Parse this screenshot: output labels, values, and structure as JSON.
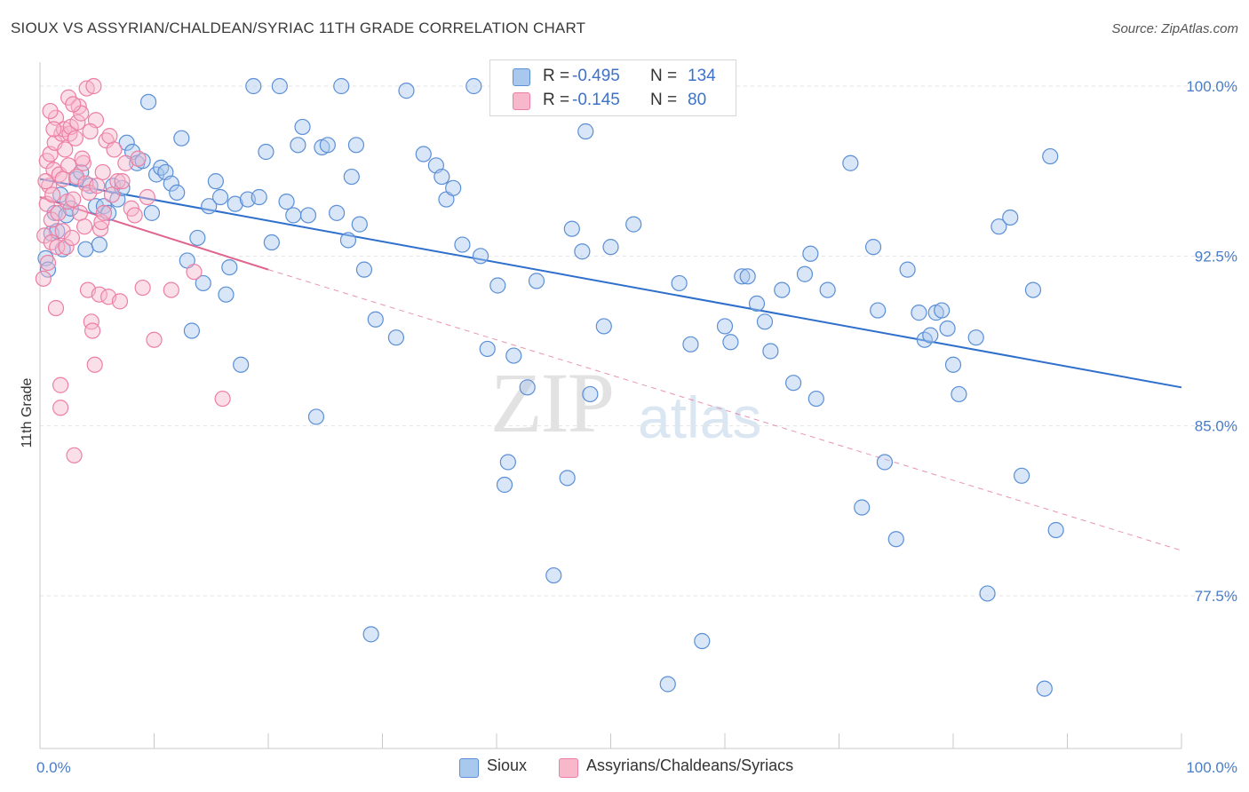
{
  "title": "SIOUX VS ASSYRIAN/CHALDEAN/SYRIAC 11TH GRADE CORRELATION CHART",
  "source": "Source: ZipAtlas.com",
  "watermark": {
    "zip": "ZIP",
    "atlas": "atlas"
  },
  "legend": {
    "rows": [
      {
        "r_label": "R =",
        "r_value": "-0.495",
        "n_label": "N =",
        "n_value": "134",
        "color": "#a9c8ee"
      },
      {
        "r_label": "R =",
        "r_value": "-0.145",
        "n_label": "N =",
        "n_value": "80",
        "color": "#f7b8cb"
      }
    ]
  },
  "bottom_legend": [
    {
      "label": "Sioux",
      "color": "#a9c8ee"
    },
    {
      "label": "Assyrians/Chaldeans/Syriacs",
      "color": "#f7b8cb"
    }
  ],
  "chart_data": {
    "type": "scatter",
    "title": "SIOUX VS ASSYRIAN/CHALDEAN/SYRIAC 11TH GRADE CORRELATION CHART",
    "xlabel": "",
    "ylabel": "11th Grade",
    "xlim": [
      0,
      100
    ],
    "ylim": [
      70,
      100.5
    ],
    "y_ticks": [
      {
        "value": 100.0,
        "label": "100.0%"
      },
      {
        "value": 92.5,
        "label": "92.5%"
      },
      {
        "value": 85.0,
        "label": "85.0%"
      },
      {
        "value": 77.5,
        "label": "77.5%"
      }
    ],
    "x_ticks": [
      {
        "value": 0,
        "label": "0.0%"
      },
      {
        "value": 100,
        "label": "100.0%"
      }
    ],
    "grid": true,
    "series": [
      {
        "name": "Sioux",
        "color": "#5b8fd6",
        "fill": "#a9c8ee",
        "trend": {
          "x": [
            0,
            100
          ],
          "y": [
            95.9,
            86.7
          ],
          "style": "solid",
          "color": "#2f6fcc"
        },
        "points": [
          [
            0.5,
            92.4
          ],
          [
            0.7,
            91.9
          ],
          [
            1.0,
            93.5
          ],
          [
            1.3,
            94.4
          ],
          [
            1.5,
            93.6
          ],
          [
            1.8,
            95.2
          ],
          [
            2.0,
            92.8
          ],
          [
            2.3,
            94.3
          ],
          [
            2.7,
            94.6
          ],
          [
            3.2,
            95.9
          ],
          [
            3.6,
            96.2
          ],
          [
            4.0,
            92.8
          ],
          [
            4.4,
            95.6
          ],
          [
            4.9,
            94.7
          ],
          [
            5.2,
            93.0
          ],
          [
            5.6,
            94.7
          ],
          [
            6.0,
            94.4
          ],
          [
            6.4,
            95.6
          ],
          [
            6.8,
            95.0
          ],
          [
            7.2,
            95.5
          ],
          [
            7.6,
            97.5
          ],
          [
            8.1,
            97.1
          ],
          [
            8.5,
            96.6
          ],
          [
            9.0,
            96.7
          ],
          [
            9.5,
            99.3
          ],
          [
            9.8,
            94.4
          ],
          [
            10.2,
            96.1
          ],
          [
            10.6,
            96.4
          ],
          [
            11.0,
            96.2
          ],
          [
            11.5,
            95.7
          ],
          [
            12.0,
            95.3
          ],
          [
            12.4,
            97.7
          ],
          [
            12.9,
            92.3
          ],
          [
            13.3,
            89.2
          ],
          [
            13.8,
            93.3
          ],
          [
            14.3,
            91.3
          ],
          [
            14.8,
            94.7
          ],
          [
            15.4,
            95.8
          ],
          [
            15.8,
            95.1
          ],
          [
            16.3,
            90.8
          ],
          [
            16.6,
            92.0
          ],
          [
            17.1,
            94.8
          ],
          [
            17.6,
            87.7
          ],
          [
            18.2,
            95.0
          ],
          [
            18.7,
            100.0
          ],
          [
            19.2,
            95.1
          ],
          [
            19.8,
            97.1
          ],
          [
            20.3,
            93.1
          ],
          [
            21.0,
            100.0
          ],
          [
            21.6,
            94.9
          ],
          [
            22.2,
            94.3
          ],
          [
            22.6,
            97.4
          ],
          [
            23.0,
            98.2
          ],
          [
            23.5,
            94.3
          ],
          [
            24.2,
            85.4
          ],
          [
            24.7,
            97.3
          ],
          [
            25.2,
            97.4
          ],
          [
            26.0,
            94.4
          ],
          [
            26.4,
            100.0
          ],
          [
            27.0,
            93.2
          ],
          [
            27.3,
            96.0
          ],
          [
            27.7,
            97.4
          ],
          [
            28.0,
            93.9
          ],
          [
            28.4,
            91.9
          ],
          [
            29.0,
            75.8
          ],
          [
            29.4,
            89.7
          ],
          [
            31.2,
            88.9
          ],
          [
            32.1,
            99.8
          ],
          [
            33.6,
            97.0
          ],
          [
            34.7,
            96.5
          ],
          [
            35.2,
            96.0
          ],
          [
            35.6,
            95.0
          ],
          [
            36.2,
            95.5
          ],
          [
            37.0,
            93.0
          ],
          [
            38.0,
            100.0
          ],
          [
            38.6,
            92.5
          ],
          [
            39.2,
            88.4
          ],
          [
            40.1,
            91.2
          ],
          [
            40.7,
            82.4
          ],
          [
            41.0,
            83.4
          ],
          [
            41.5,
            88.1
          ],
          [
            42.7,
            86.7
          ],
          [
            43.5,
            91.4
          ],
          [
            45.0,
            78.4
          ],
          [
            46.2,
            82.7
          ],
          [
            46.6,
            93.7
          ],
          [
            47.5,
            92.7
          ],
          [
            47.8,
            98.0
          ],
          [
            48.2,
            86.4
          ],
          [
            49.4,
            89.4
          ],
          [
            50.0,
            92.9
          ],
          [
            52.0,
            93.9
          ],
          [
            53.2,
            99.9
          ],
          [
            55.0,
            73.6
          ],
          [
            56.0,
            91.3
          ],
          [
            57.0,
            88.6
          ],
          [
            58.0,
            75.5
          ],
          [
            59.0,
            100.0
          ],
          [
            60.0,
            89.4
          ],
          [
            60.5,
            88.7
          ],
          [
            61.5,
            91.6
          ],
          [
            62.0,
            91.6
          ],
          [
            62.8,
            90.4
          ],
          [
            63.5,
            89.6
          ],
          [
            64.0,
            88.3
          ],
          [
            65.0,
            91.0
          ],
          [
            66.0,
            86.9
          ],
          [
            67.0,
            91.7
          ],
          [
            67.5,
            92.6
          ],
          [
            68.0,
            86.2
          ],
          [
            69.0,
            91.0
          ],
          [
            71.0,
            96.6
          ],
          [
            72.0,
            81.4
          ],
          [
            73.0,
            92.9
          ],
          [
            73.4,
            90.1
          ],
          [
            74.0,
            83.4
          ],
          [
            75.0,
            80.0
          ],
          [
            76.0,
            91.9
          ],
          [
            77.0,
            90.0
          ],
          [
            77.5,
            88.8
          ],
          [
            78.0,
            89.0
          ],
          [
            78.5,
            90.0
          ],
          [
            79.0,
            90.1
          ],
          [
            79.5,
            89.3
          ],
          [
            80.0,
            87.7
          ],
          [
            80.5,
            86.4
          ],
          [
            82.0,
            88.9
          ],
          [
            83.0,
            77.6
          ],
          [
            84.0,
            93.8
          ],
          [
            85.0,
            94.2
          ],
          [
            86.0,
            82.8
          ],
          [
            87.0,
            91.0
          ],
          [
            88.0,
            73.4
          ],
          [
            88.5,
            96.9
          ],
          [
            89.0,
            80.4
          ]
        ]
      },
      {
        "name": "Assyrians/Chaldeans/Syriacs",
        "color": "#ec7fa3",
        "fill": "#f7b8cb",
        "trend": {
          "x": [
            0,
            20
          ],
          "y": [
            95.1,
            91.9
          ],
          "style": "solid",
          "color": "#e0668f",
          "extension": {
            "x": [
              20,
              100
            ],
            "y": [
              91.9,
              79.5
            ],
            "style": "dashed"
          }
        },
        "points": [
          [
            0.3,
            91.5
          ],
          [
            0.4,
            93.4
          ],
          [
            0.6,
            94.8
          ],
          [
            0.6,
            96.7
          ],
          [
            0.7,
            92.2
          ],
          [
            0.8,
            95.6
          ],
          [
            0.9,
            97.0
          ],
          [
            1.0,
            93.1
          ],
          [
            1.0,
            94.1
          ],
          [
            1.1,
            95.2
          ],
          [
            1.2,
            96.3
          ],
          [
            1.3,
            97.5
          ],
          [
            1.4,
            90.2
          ],
          [
            1.4,
            98.6
          ],
          [
            1.5,
            92.9
          ],
          [
            1.6,
            94.4
          ],
          [
            1.7,
            96.1
          ],
          [
            1.8,
            85.8
          ],
          [
            1.8,
            86.8
          ],
          [
            1.9,
            97.9
          ],
          [
            2.0,
            93.6
          ],
          [
            2.0,
            95.9
          ],
          [
            2.1,
            98.1
          ],
          [
            2.2,
            97.2
          ],
          [
            2.3,
            92.9
          ],
          [
            2.4,
            94.9
          ],
          [
            2.5,
            96.5
          ],
          [
            2.5,
            99.5
          ],
          [
            2.6,
            97.9
          ],
          [
            2.7,
            98.2
          ],
          [
            2.8,
            93.3
          ],
          [
            2.9,
            95.0
          ],
          [
            3.0,
            83.7
          ],
          [
            3.1,
            97.7
          ],
          [
            3.2,
            96.0
          ],
          [
            3.3,
            98.4
          ],
          [
            3.4,
            99.1
          ],
          [
            3.5,
            94.4
          ],
          [
            3.6,
            98.8
          ],
          [
            3.8,
            96.6
          ],
          [
            3.9,
            93.8
          ],
          [
            4.0,
            95.7
          ],
          [
            4.1,
            99.9
          ],
          [
            4.2,
            91.0
          ],
          [
            4.3,
            95.3
          ],
          [
            4.5,
            89.6
          ],
          [
            4.6,
            89.2
          ],
          [
            4.7,
            100.0
          ],
          [
            4.8,
            87.7
          ],
          [
            4.9,
            98.5
          ],
          [
            5.0,
            95.6
          ],
          [
            5.2,
            90.8
          ],
          [
            5.3,
            93.7
          ],
          [
            5.4,
            94.0
          ],
          [
            5.5,
            96.2
          ],
          [
            5.6,
            94.4
          ],
          [
            5.8,
            97.6
          ],
          [
            6.0,
            90.7
          ],
          [
            6.1,
            97.8
          ],
          [
            6.3,
            95.2
          ],
          [
            6.5,
            97.2
          ],
          [
            6.8,
            95.8
          ],
          [
            7.0,
            90.5
          ],
          [
            7.2,
            95.8
          ],
          [
            7.5,
            96.6
          ],
          [
            8.0,
            94.6
          ],
          [
            8.3,
            94.3
          ],
          [
            8.6,
            96.8
          ],
          [
            9.0,
            91.1
          ],
          [
            9.4,
            95.1
          ],
          [
            10.0,
            88.8
          ],
          [
            11.5,
            91.0
          ],
          [
            13.5,
            91.8
          ],
          [
            16.0,
            86.2
          ],
          [
            0.5,
            95.8
          ],
          [
            1.2,
            98.1
          ],
          [
            2.9,
            99.2
          ],
          [
            3.7,
            96.8
          ],
          [
            4.4,
            98.0
          ],
          [
            0.9,
            98.9
          ]
        ]
      }
    ]
  }
}
